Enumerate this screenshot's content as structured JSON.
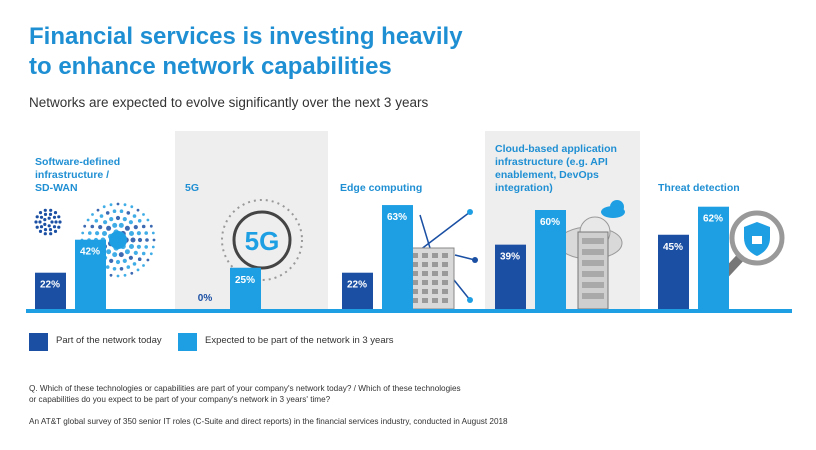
{
  "title_line1": "Financial services is investing heavily",
  "title_line2": "to enhance network capabilities",
  "subtitle": "Networks are expected to evolve significantly over the next 3 years",
  "colors": {
    "today": "#1a4fa3",
    "future": "#1f9fe3",
    "panel_bg": "#eeeeee",
    "title": "#1f8fd3",
    "baseline": "#1f9fe3"
  },
  "chart_data": {
    "type": "bar",
    "categories": [
      [
        "Software-defined",
        "infrastructure /",
        "SD-WAN"
      ],
      [
        "5G"
      ],
      [
        "Edge computing"
      ],
      [
        "Cloud-based application",
        "infrastructure (e.g. API",
        "enablement, DevOps",
        "integration)"
      ],
      [
        "Threat detection"
      ]
    ],
    "series": [
      {
        "name": "Part of the network today",
        "values": [
          22,
          0,
          22,
          39,
          45
        ],
        "labels": [
          "22%",
          "0%",
          "22%",
          "39%",
          "45%"
        ]
      },
      {
        "name": "Expected to be part of the network in 3 years",
        "values": [
          42,
          25,
          63,
          60,
          62
        ],
        "labels": [
          "42%",
          "25%",
          "63%",
          "60%",
          "62%"
        ]
      }
    ],
    "icons": [
      "sd-wan-dots-icon",
      "5g-icon",
      "edge-building-icon",
      "cloud-server-icon",
      "shield-magnifier-icon"
    ],
    "icon_text_5g": "5G",
    "shaded_panels": [
      1,
      3
    ],
    "legend_position": "bottom-left"
  },
  "footnote": {
    "question_line1": "Q. Which of these technologies or capabilities are part of your company's network today? / Which of these technologies",
    "question_line2": "or capabilities do you expect to be part of your company's network in 3 years' time?",
    "source": "An AT&T global survey of 350 senior IT roles (C-Suite and direct reports) in the financial services industry, conducted in August 2018"
  }
}
